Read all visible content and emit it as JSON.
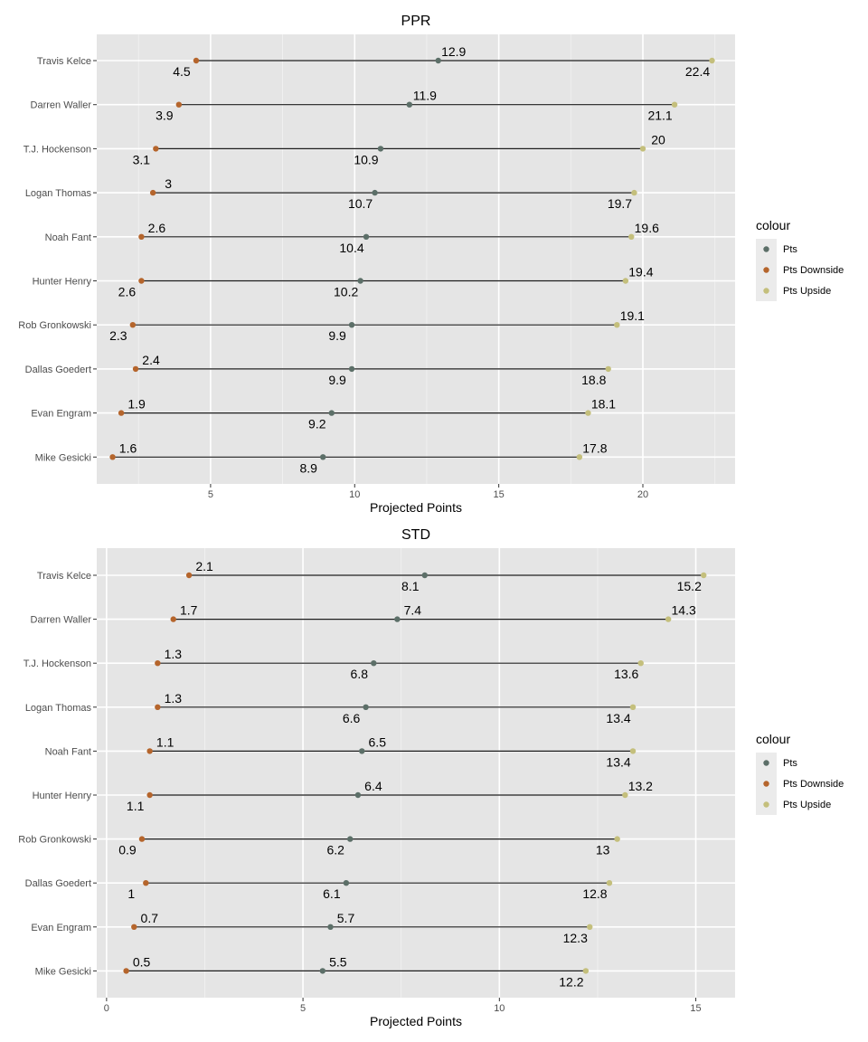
{
  "chart_data": [
    {
      "type": "dumbbell",
      "title": "PPR",
      "xlabel": "Projected Points",
      "ylabel": "",
      "xlim": [
        1.05,
        23.2
      ],
      "xticks": [
        5,
        10,
        15,
        20
      ],
      "grid": true,
      "legend_position": "right",
      "legend_title": "colour",
      "categories": [
        "Travis Kelce",
        "Darren Waller",
        "T.J. Hockenson",
        "Logan Thomas",
        "Noah Fant",
        "Hunter Henry",
        "Rob Gronkowski",
        "Dallas Goedert",
        "Evan Engram",
        "Mike Gesicki"
      ],
      "series": [
        {
          "name": "Pts",
          "color": "#5c6f68",
          "values": [
            12.9,
            11.9,
            10.9,
            10.7,
            10.4,
            10.2,
            9.9,
            9.9,
            9.2,
            8.9
          ],
          "label_pos": [
            "above",
            "above",
            "below",
            "below",
            "below",
            "below",
            "below",
            "below",
            "below",
            "below"
          ]
        },
        {
          "name": "Pts Downside",
          "color": "#b5652c",
          "values": [
            4.5,
            3.9,
            3.1,
            3.0,
            2.6,
            2.6,
            2.3,
            2.4,
            1.9,
            1.6
          ],
          "labels": [
            "4.5",
            "3.9",
            "3.1",
            "3",
            "2.6",
            "2.6",
            "2.3",
            "2.4",
            "1.9",
            "1.6"
          ],
          "label_pos": [
            "below",
            "below",
            "below",
            "above",
            "above",
            "below",
            "below",
            "above",
            "above",
            "above"
          ]
        },
        {
          "name": "Pts Upside",
          "color": "#c4bf7c",
          "values": [
            22.4,
            21.1,
            20.0,
            19.7,
            19.6,
            19.4,
            19.1,
            18.8,
            18.1,
            17.8
          ],
          "labels": [
            "22.4",
            "21.1",
            "20",
            "19.7",
            "19.6",
            "19.4",
            "19.1",
            "18.8",
            "18.1",
            "17.8"
          ],
          "label_pos": [
            "below",
            "below",
            "above",
            "below",
            "above",
            "above",
            "above",
            "below",
            "above",
            "above"
          ]
        }
      ]
    },
    {
      "type": "dumbbell",
      "title": "STD",
      "xlabel": "Projected Points",
      "ylabel": "",
      "xlim": [
        -0.25,
        16.0
      ],
      "xticks": [
        0,
        5,
        10,
        15
      ],
      "grid": true,
      "legend_position": "right",
      "legend_title": "colour",
      "categories": [
        "Travis Kelce",
        "Darren Waller",
        "T.J. Hockenson",
        "Logan Thomas",
        "Noah Fant",
        "Hunter Henry",
        "Rob Gronkowski",
        "Dallas Goedert",
        "Evan Engram",
        "Mike Gesicki"
      ],
      "series": [
        {
          "name": "Pts",
          "color": "#5c6f68",
          "values": [
            8.1,
            7.4,
            6.8,
            6.6,
            6.5,
            6.4,
            6.2,
            6.1,
            5.7,
            5.5
          ],
          "label_pos": [
            "below",
            "above",
            "below",
            "below",
            "above",
            "above",
            "below",
            "below",
            "above",
            "above"
          ]
        },
        {
          "name": "Pts Downside",
          "color": "#b5652c",
          "values": [
            2.1,
            1.7,
            1.3,
            1.3,
            1.1,
            1.1,
            0.9,
            1.0,
            0.7,
            0.5
          ],
          "labels": [
            "2.1",
            "1.7",
            "1.3",
            "1.3",
            "1.1",
            "1.1",
            "0.9",
            "1",
            "0.7",
            "0.5"
          ],
          "label_pos": [
            "above",
            "above",
            "above",
            "above",
            "above",
            "below",
            "below",
            "below",
            "above",
            "above"
          ]
        },
        {
          "name": "Pts Upside",
          "color": "#c4bf7c",
          "values": [
            15.2,
            14.3,
            13.6,
            13.4,
            13.4,
            13.2,
            13.0,
            12.8,
            12.3,
            12.2
          ],
          "labels": [
            "15.2",
            "14.3",
            "13.6",
            "13.4",
            "13.4",
            "13.2",
            "13",
            "12.8",
            "12.3",
            "12.2"
          ],
          "label_pos": [
            "below",
            "above",
            "below",
            "below",
            "below",
            "above",
            "below",
            "below",
            "below",
            "below"
          ]
        }
      ]
    }
  ]
}
